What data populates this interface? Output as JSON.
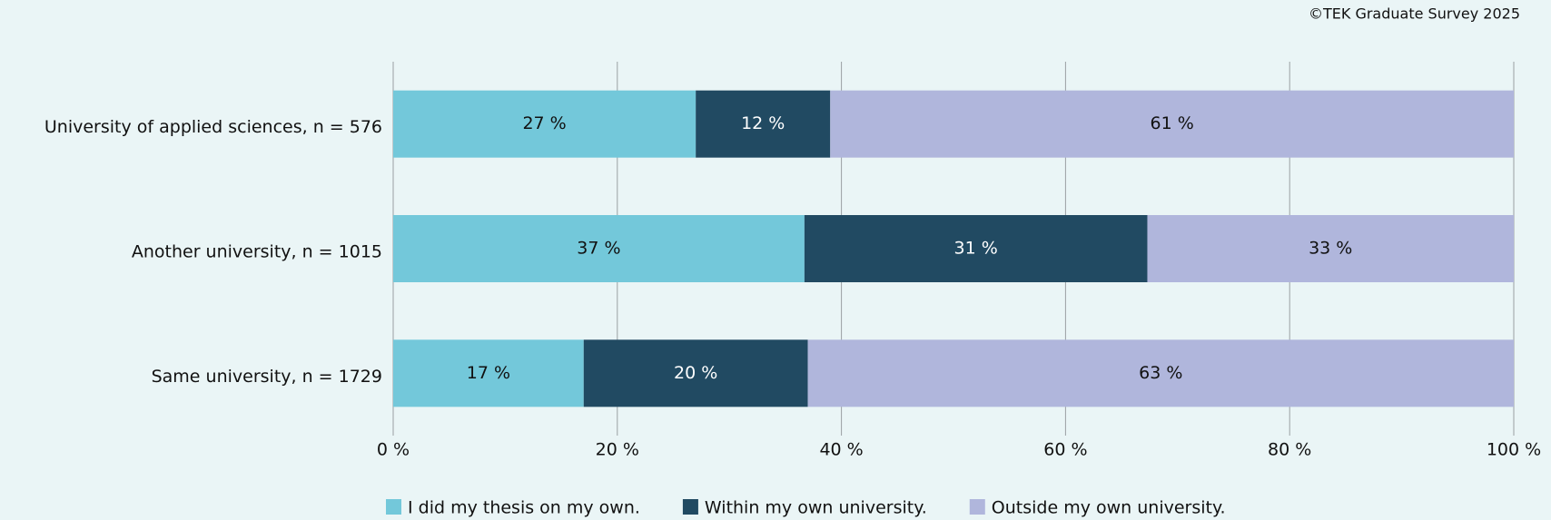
{
  "chart_data": {
    "type": "stacked_barh",
    "source": "©TEK Graduate Survey 2025",
    "categories": [
      "University of applied sciences, n = 576",
      "Another university, n = 1015",
      "Same university, n = 1729"
    ],
    "series": [
      {
        "name": "I did my thesis on my own.",
        "color": "#73c8da",
        "values": [
          27,
          36.7,
          17
        ],
        "value_labels": [
          "27 %",
          "37 %",
          "17 %"
        ]
      },
      {
        "name": "Within my own university.",
        "color": "#214a62",
        "values": [
          12,
          30.6,
          20
        ],
        "value_labels": [
          "12 %",
          "31 %",
          "20 %"
        ]
      },
      {
        "name": "Outside my own university.",
        "color": "#b0b6dc",
        "values": [
          61,
          32.7,
          63
        ],
        "value_labels": [
          "61 %",
          "33 %",
          "63 %"
        ]
      }
    ],
    "xlim": [
      0,
      100
    ],
    "xticks": [
      {
        "value": 0,
        "label": "0 %"
      },
      {
        "value": 20,
        "label": "20 %"
      },
      {
        "value": 40,
        "label": "40 %"
      },
      {
        "value": 60,
        "label": "60 %"
      },
      {
        "value": 80,
        "label": "80 %"
      },
      {
        "value": 100,
        "label": "100 %"
      }
    ],
    "grid": true,
    "legend": "bottom"
  }
}
